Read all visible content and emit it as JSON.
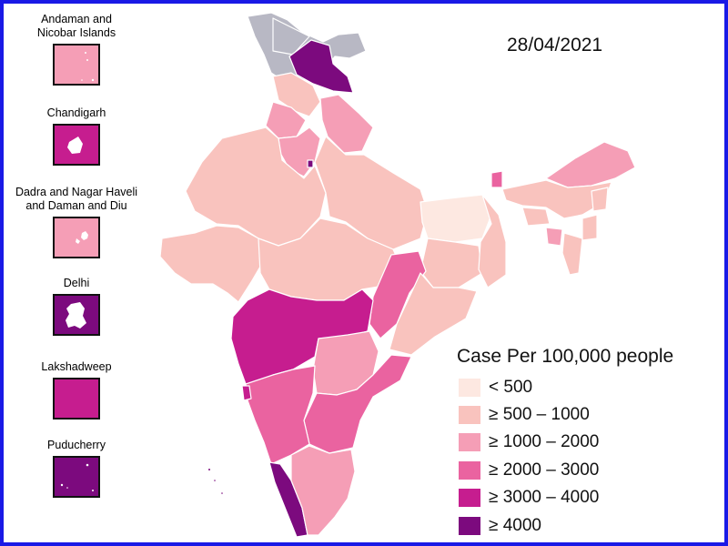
{
  "date": "28/04/2021",
  "colors": {
    "frame": "#1a1ae6",
    "c_lt500": "#fde8e1",
    "c_500_1000": "#f9c3be",
    "c_1000_2000": "#f59eb6",
    "c_2000_3000": "#ea63a0",
    "c_3000_4000": "#c61d8f",
    "c_ge4000": "#7c0a7e",
    "no_data": "#b8b8c4"
  },
  "legend": {
    "title": "Case Per 100,000 people",
    "items": [
      {
        "label": "< 500",
        "color": "#fde8e1"
      },
      {
        "label": "≥ 500 – 1000",
        "color": "#f9c3be"
      },
      {
        "label": "≥ 1000 – 2000",
        "color": "#f59eb6"
      },
      {
        "label": "≥ 2000 – 3000",
        "color": "#ea63a0"
      },
      {
        "label": "≥ 3000 – 4000",
        "color": "#c61d8f"
      },
      {
        "label": "≥ 4000",
        "color": "#7c0a7e"
      }
    ]
  },
  "insets": [
    {
      "label": "Andaman and\nNicobar Islands",
      "color": "#f59eb6"
    },
    {
      "label": "Chandigarh",
      "color": "#c61d8f"
    },
    {
      "label": "Dadra and Nagar Haveli\nand Daman and Diu",
      "color": "#f59eb6"
    },
    {
      "label": "Delhi",
      "color": "#7c0a7e"
    },
    {
      "label": "Lakshadweep",
      "color": "#c61d8f"
    },
    {
      "label": "Puducherry",
      "color": "#7c0a7e"
    }
  ]
}
